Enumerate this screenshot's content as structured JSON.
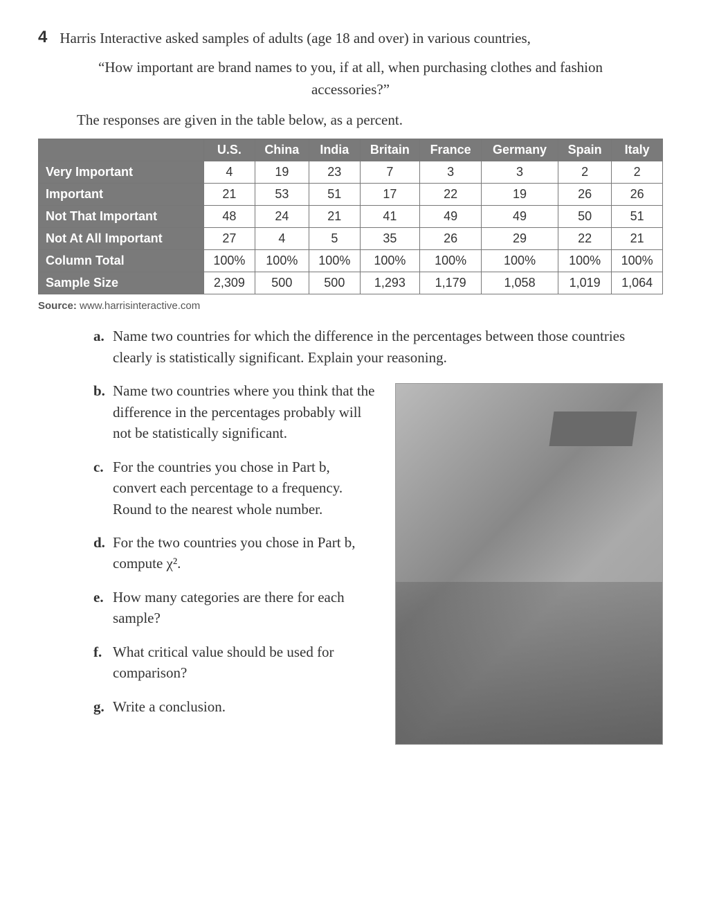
{
  "problem": {
    "number": "4",
    "intro": "Harris Interactive asked samples of adults (age 18 and over) in various countries,",
    "quote": "“How important are brand names to you, if at all, when purchasing clothes and fashion accessories?”",
    "lead_in": "The responses are given in the table below, as a percent."
  },
  "table": {
    "columns": [
      "U.S.",
      "China",
      "India",
      "Britain",
      "France",
      "Germany",
      "Spain",
      "Italy"
    ],
    "rows": [
      {
        "label": "Very Important",
        "cells": [
          "4",
          "19",
          "23",
          "7",
          "3",
          "3",
          "2",
          "2"
        ]
      },
      {
        "label": "Important",
        "cells": [
          "21",
          "53",
          "51",
          "17",
          "22",
          "19",
          "26",
          "26"
        ]
      },
      {
        "label": "Not That Important",
        "cells": [
          "48",
          "24",
          "21",
          "41",
          "49",
          "49",
          "50",
          "51"
        ]
      },
      {
        "label": "Not At All Important",
        "cells": [
          "27",
          "4",
          "5",
          "35",
          "26",
          "29",
          "22",
          "21"
        ]
      },
      {
        "label": "Column Total",
        "cells": [
          "100%",
          "100%",
          "100%",
          "100%",
          "100%",
          "100%",
          "100%",
          "100%"
        ]
      },
      {
        "label": "Sample Size",
        "cells": [
          "2,309",
          "500",
          "500",
          "1,293",
          "1,179",
          "1,058",
          "1,019",
          "1,064"
        ]
      }
    ],
    "header_bg": "#7a7a7a",
    "header_fg": "#ffffff",
    "border_color": "#777777",
    "cell_fontsize": 18
  },
  "source": {
    "label": "Source:",
    "text": "www.harrisinteractive.com"
  },
  "questions": {
    "a": "Name two countries for which the difference in the percentages between those countries clearly is statistically significant. Explain your reasoning.",
    "b": "Name two countries where you think that the difference in the percentages probably will not be statistically significant.",
    "c": "For the countries you chose in Part b, convert each percentage to a frequency. Round to the nearest whole number.",
    "d": "For the two countries you chose in Part b, compute χ².",
    "e": "How many categories are there for each sample?",
    "f": "What critical value should be used for comparison?",
    "g": "Write a conclusion."
  },
  "labels": {
    "a": "a.",
    "b": "b.",
    "c": "c.",
    "d": "d.",
    "e": "e.",
    "f": "f.",
    "g": "g."
  }
}
